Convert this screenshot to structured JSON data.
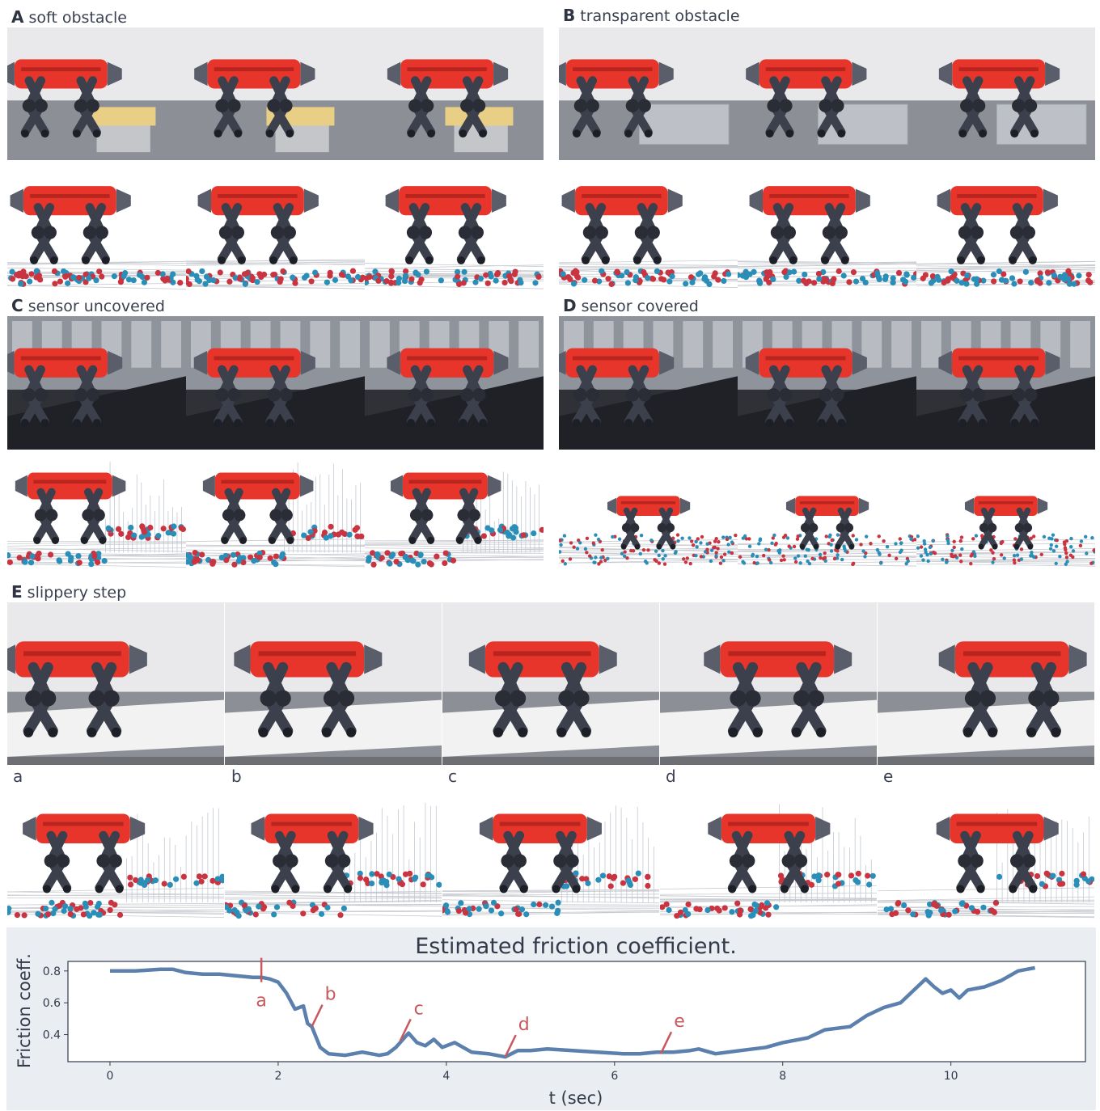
{
  "panels": [
    {
      "letter": "A",
      "title": "soft obstacle"
    },
    {
      "letter": "B",
      "title": "transparent obstacle"
    },
    {
      "letter": "C",
      "title": "sensor uncovered"
    },
    {
      "letter": "D",
      "title": "sensor covered"
    },
    {
      "letter": "E",
      "title": "slippery step"
    }
  ],
  "frame_labels": [
    "a",
    "b",
    "c",
    "d",
    "e"
  ],
  "colors": {
    "robot_red": "#e8352b",
    "robot_dark": "#3c3f4c",
    "point_blue": "#2a8fb8",
    "point_red": "#c93440",
    "line_blue": "#5b80ad",
    "marker_red": "#c8585e"
  },
  "chart_data": {
    "type": "line",
    "title": "Estimated friction coefficient.",
    "xlabel": "t (sec)",
    "ylabel": "Friction coeff.",
    "xlim": [
      -0.5,
      11.6
    ],
    "ylim": [
      0.23,
      0.86
    ],
    "xticks": [
      0,
      2,
      4,
      6,
      8,
      10
    ],
    "yticks": [
      0.4,
      0.6,
      0.8
    ],
    "grid": false,
    "series": [
      {
        "x": [
          0,
          0.3,
          0.6,
          0.75,
          0.9,
          1.1,
          1.3,
          1.5,
          1.7,
          1.8,
          1.9,
          2.0,
          2.1,
          2.2,
          2.3,
          2.35,
          2.4,
          2.5,
          2.6,
          2.8,
          3.0,
          3.2,
          3.3,
          3.4,
          3.5,
          3.55,
          3.65,
          3.75,
          3.85,
          3.95,
          4.1,
          4.3,
          4.5,
          4.7,
          4.85,
          5.0,
          5.2,
          5.5,
          5.8,
          6.1,
          6.3,
          6.5,
          6.7,
          6.9,
          7.0,
          7.2,
          7.5,
          7.8,
          8.0,
          8.3,
          8.5,
          8.8,
          9.0,
          9.2,
          9.4,
          9.6,
          9.7,
          9.8,
          9.9,
          10.0,
          10.1,
          10.2,
          10.4,
          10.6,
          10.8,
          11.0
        ],
        "y": [
          0.8,
          0.8,
          0.81,
          0.81,
          0.79,
          0.78,
          0.78,
          0.77,
          0.76,
          0.76,
          0.75,
          0.73,
          0.66,
          0.56,
          0.58,
          0.47,
          0.45,
          0.32,
          0.28,
          0.27,
          0.29,
          0.27,
          0.28,
          0.32,
          0.38,
          0.41,
          0.35,
          0.33,
          0.37,
          0.32,
          0.35,
          0.29,
          0.28,
          0.26,
          0.3,
          0.3,
          0.31,
          0.3,
          0.29,
          0.28,
          0.28,
          0.29,
          0.29,
          0.3,
          0.31,
          0.28,
          0.3,
          0.32,
          0.35,
          0.38,
          0.43,
          0.45,
          0.52,
          0.57,
          0.6,
          0.7,
          0.75,
          0.7,
          0.66,
          0.68,
          0.63,
          0.68,
          0.7,
          0.74,
          0.8,
          0.82
        ]
      }
    ],
    "annotations": [
      {
        "label": "a",
        "x": 1.8,
        "y": 0.73
      },
      {
        "label": "b",
        "x": 2.4,
        "y": 0.45
      },
      {
        "label": "c",
        "x": 3.45,
        "y": 0.36
      },
      {
        "label": "d",
        "x": 4.7,
        "y": 0.26
      },
      {
        "label": "e",
        "x": 6.55,
        "y": 0.28
      }
    ]
  }
}
